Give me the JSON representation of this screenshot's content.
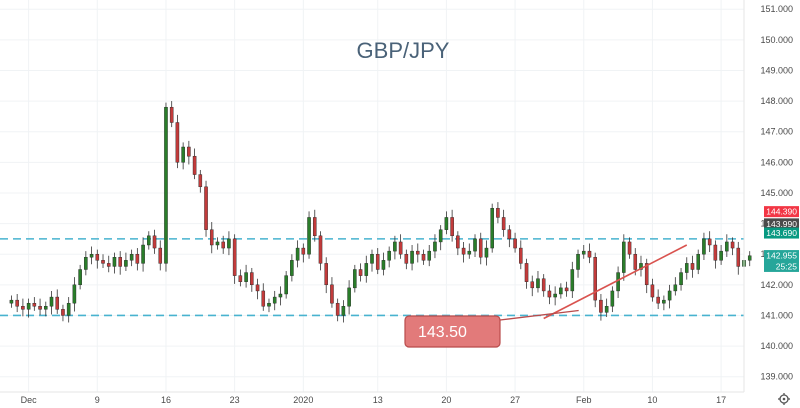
{
  "chart_data": {
    "type": "candlestick",
    "title": "GBP/JPY",
    "ylim": [
      138.5,
      151.3
    ],
    "y_ticks": [
      "151.000",
      "150.000",
      "149.000",
      "148.000",
      "147.000",
      "146.000",
      "145.000",
      "144.000",
      "143.000",
      "142.000",
      "141.000",
      "140.000",
      "139.000"
    ],
    "x_ticks": [
      "Dec",
      "9",
      "16",
      "23",
      "2020",
      "13",
      "20",
      "27",
      "Feb",
      "10",
      "17"
    ],
    "x_range": [
      0,
      130
    ],
    "x_tick_positions": [
      5,
      17,
      29,
      41,
      53,
      66,
      78,
      90,
      102,
      114,
      126
    ],
    "price_tags": [
      {
        "label": "144.390",
        "color": "#f23645",
        "value": 144.39
      },
      {
        "label": "143.990",
        "color": "#4a4a4a",
        "value": 143.99
      },
      {
        "label": "143.690",
        "color": "#089981",
        "value": 143.69
      },
      {
        "label": "142.955",
        "color": "#26a69a",
        "value": 142.955
      },
      {
        "label": "25:25",
        "color": "#26a69a",
        "value": 142.6
      }
    ],
    "horizontal_lines": [
      {
        "value": 143.5,
        "color": "#48b3cf",
        "style": "dashed"
      },
      {
        "value": 141.0,
        "color": "#48b3cf",
        "style": "dashed"
      }
    ],
    "trendline": {
      "from": [
        95,
        140.9
      ],
      "to": [
        120,
        143.3
      ],
      "color": "#d9534f"
    },
    "annotation": {
      "text": "143.50"
    },
    "candles_close": [
      141.5,
      141.3,
      141.2,
      141.4,
      141.3,
      141.2,
      141.3,
      141.6,
      141.2,
      141.0,
      141.4,
      142.0,
      142.5,
      142.9,
      143.0,
      142.8,
      142.7,
      142.6,
      142.9,
      142.6,
      142.8,
      143.0,
      142.7,
      143.3,
      143.6,
      143.2,
      142.7,
      147.8,
      147.3,
      146.0,
      146.5,
      146.2,
      145.6,
      145.2,
      143.8,
      143.3,
      143.4,
      143.2,
      143.5,
      142.3,
      142.1,
      142.4,
      142.0,
      141.8,
      141.3,
      141.4,
      141.6,
      141.7,
      142.3,
      142.8,
      143.2,
      143.0,
      144.2,
      143.6,
      142.7,
      142.0,
      141.4,
      141.0,
      141.3,
      141.9,
      142.5,
      142.3,
      142.7,
      143.0,
      142.5,
      142.8,
      143.1,
      143.4,
      143.0,
      142.7,
      143.1,
      143.0,
      142.8,
      143.1,
      143.4,
      143.8,
      144.2,
      143.6,
      143.2,
      143.0,
      143.1,
      143.5,
      142.9,
      143.2,
      144.5,
      144.2,
      143.8,
      143.5,
      143.2,
      142.7,
      142.1,
      141.9,
      142.2,
      141.8,
      141.6,
      141.7,
      141.9,
      141.8,
      142.5,
      143.0,
      143.1,
      142.9,
      141.5,
      141.1,
      141.3,
      141.8,
      142.4,
      143.4,
      143.0,
      142.5,
      142.7,
      142.0,
      141.6,
      141.4,
      141.5,
      141.8,
      142.0,
      142.4,
      142.7,
      142.5,
      143.0,
      143.5,
      143.3,
      142.8,
      143.1,
      143.4,
      143.2,
      142.6,
      142.8,
      142.95
    ]
  }
}
